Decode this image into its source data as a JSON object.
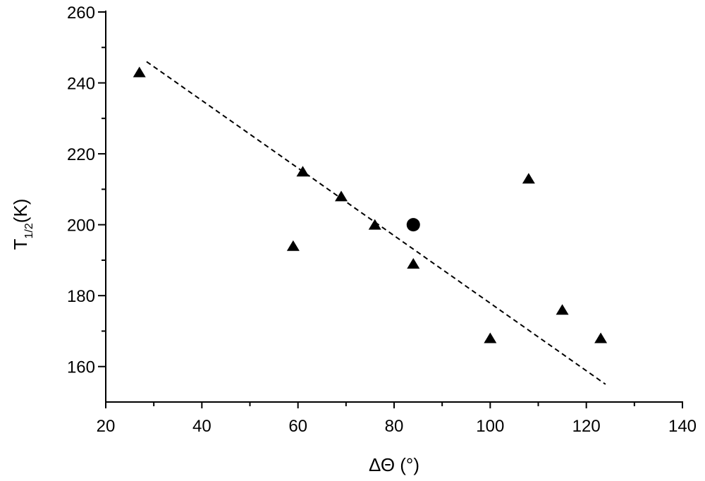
{
  "chart_data": {
    "type": "scatter",
    "title": "",
    "xlabel": "ΔΘ (°)",
    "ylabel": {
      "main": "T",
      "subscript": "1/2",
      "suffix": "(K)"
    },
    "xlim": [
      20,
      140
    ],
    "ylim": [
      150,
      260
    ],
    "x_ticks": [
      20,
      40,
      60,
      80,
      100,
      120,
      140
    ],
    "y_ticks": [
      160,
      180,
      200,
      220,
      240,
      260
    ],
    "grid": false,
    "series": [
      {
        "name": "triangles",
        "marker": "triangle",
        "color": "#000000",
        "points": [
          [
            27,
            243
          ],
          [
            59,
            194
          ],
          [
            61,
            215
          ],
          [
            69,
            208
          ],
          [
            76,
            200
          ],
          [
            84,
            189
          ],
          [
            100,
            168
          ],
          [
            108,
            213
          ],
          [
            115,
            176
          ],
          [
            123,
            168
          ]
        ]
      },
      {
        "name": "circle",
        "marker": "circle",
        "color": "#000000",
        "points": [
          [
            84,
            200
          ]
        ]
      }
    ],
    "fit_line": {
      "style": "dashed",
      "color": "#000000",
      "from": [
        28.5,
        246
      ],
      "to": [
        124,
        155
      ]
    }
  }
}
